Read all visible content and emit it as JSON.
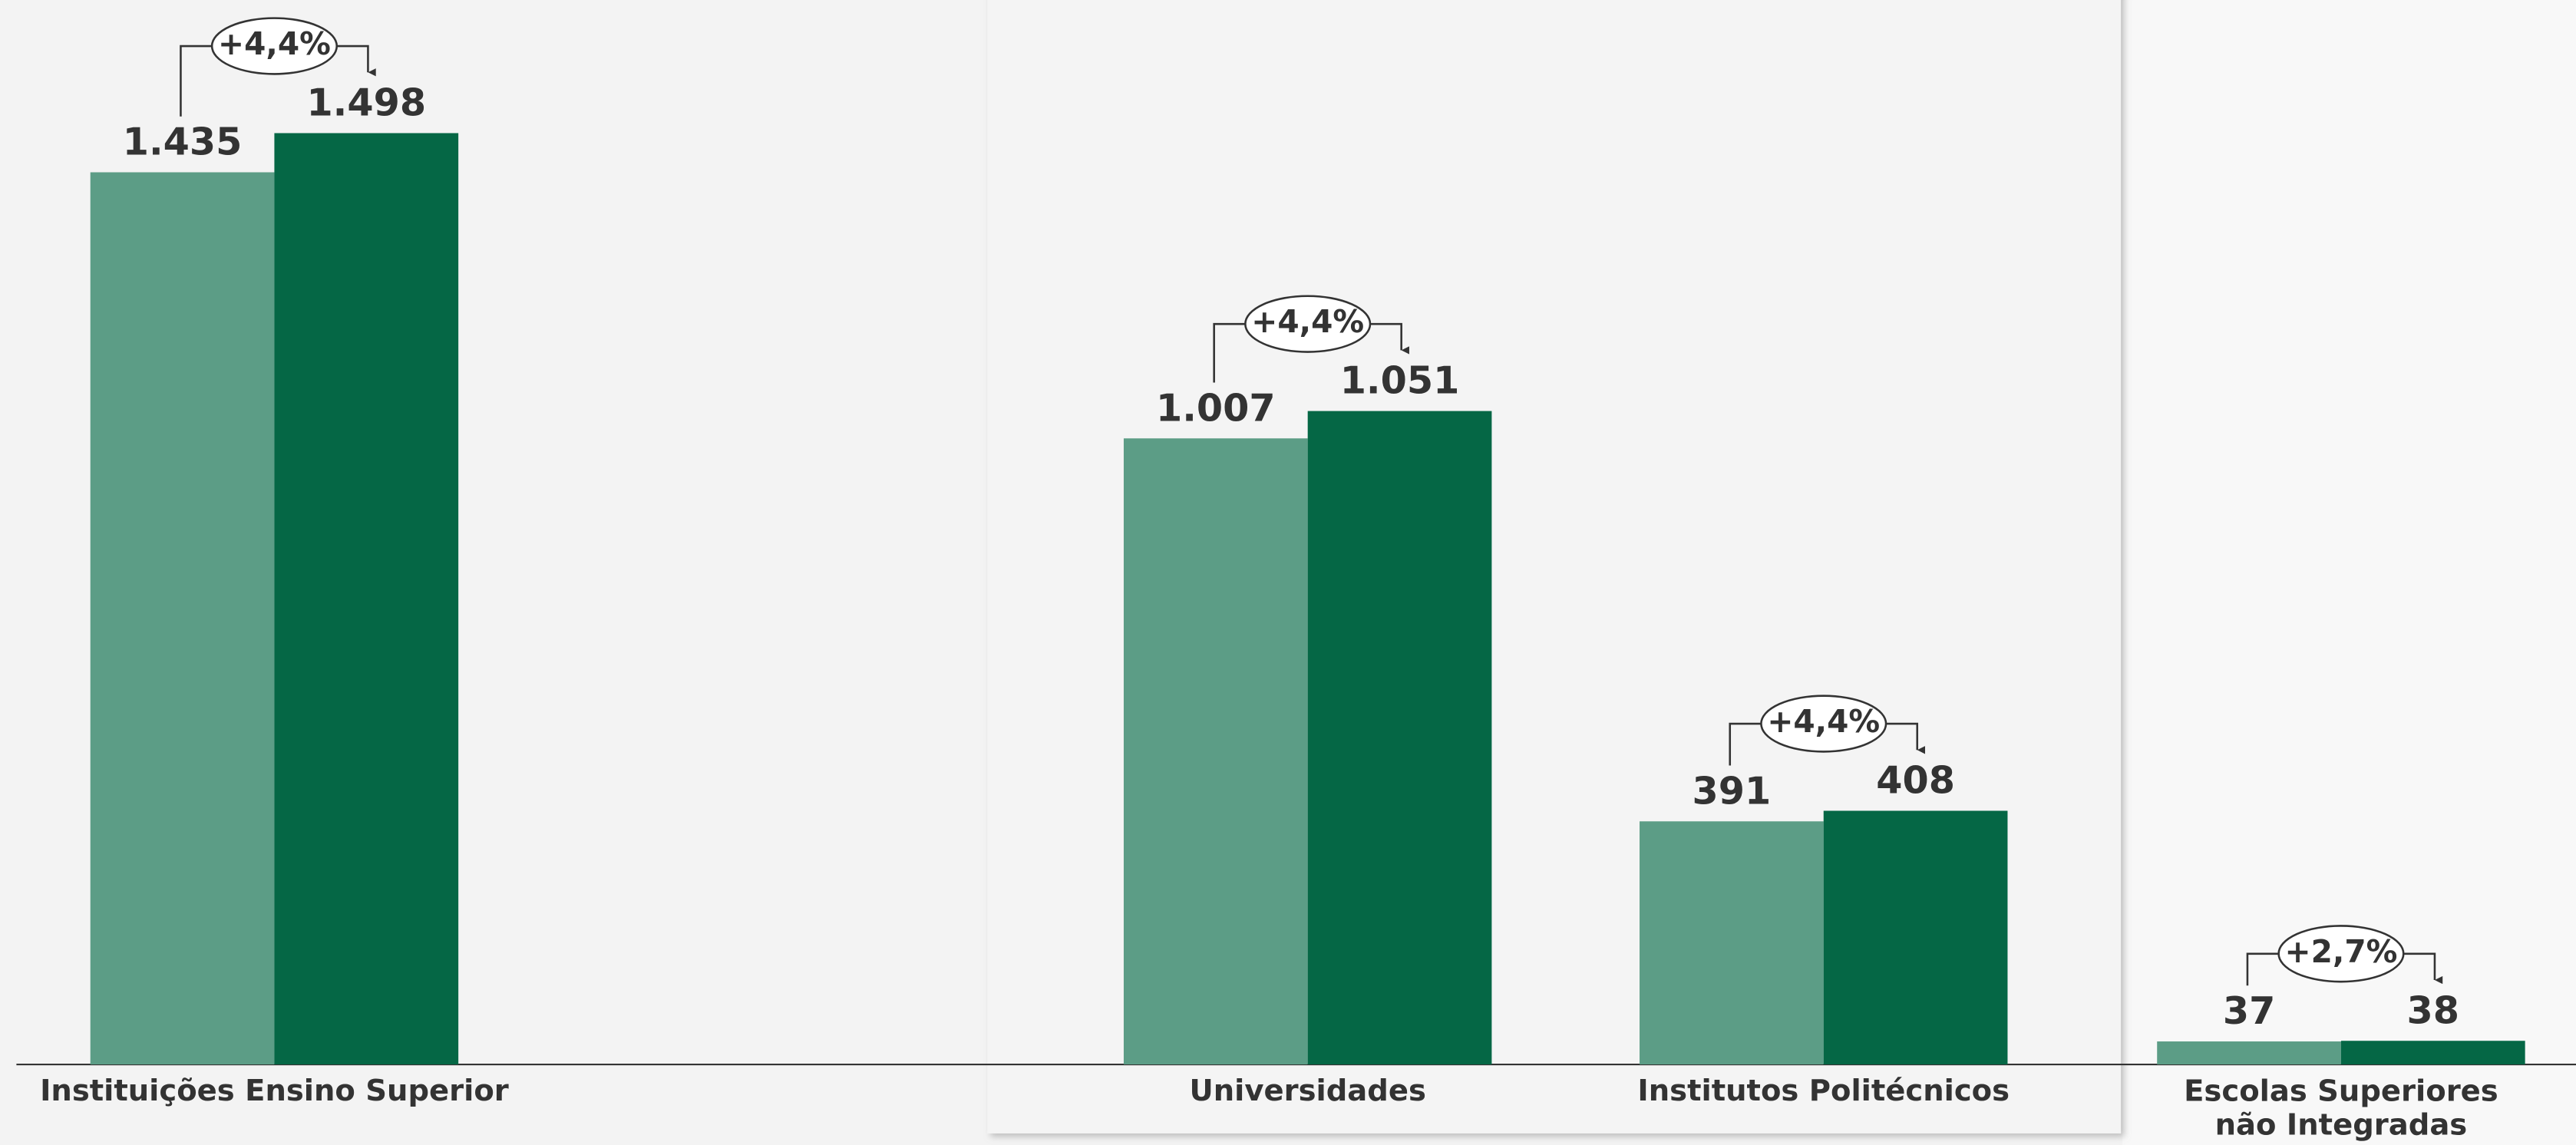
{
  "chart_data": {
    "type": "bar",
    "categories": [
      "Instituições Ensino Superior",
      "Universidades",
      "Institutos Politécnicos",
      "Escolas Superiores\nnão Integradas"
    ],
    "series": [
      {
        "color": "#5c9d86",
        "values": [
          1435,
          1007,
          391,
          37
        ],
        "value_labels": [
          "1.435",
          "1.007",
          "391",
          "37"
        ]
      },
      {
        "color": "#056745",
        "values": [
          1498,
          1051,
          408,
          38
        ],
        "value_labels": [
          "1.498",
          "1.051",
          "408",
          "38"
        ]
      }
    ],
    "annotations": [
      "+4,4%",
      "+4,4%",
      "+4,4%",
      "+2,7%"
    ]
  }
}
